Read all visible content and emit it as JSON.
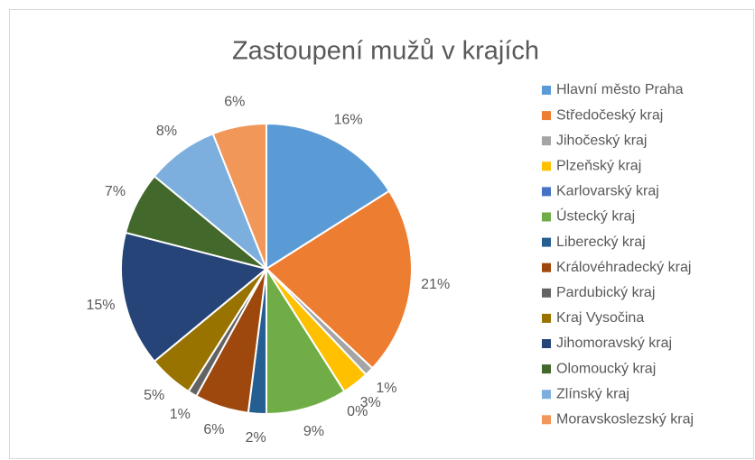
{
  "chart_data": {
    "type": "pie",
    "title": "Zastoupení mužů v krajích",
    "categories": [
      "Hlavní město Praha",
      "Středočeský kraj",
      "Jihočeský kraj",
      "Plzeňský kraj",
      "Karlovarský kraj",
      "Ústecký kraj",
      "Liberecký kraj",
      "Královéhradecký kraj",
      "Pardubický kraj",
      "Kraj Vysočina",
      "Jihomoravský kraj",
      "Olomoucký kraj",
      "Zlínský kraj",
      "Moravskoslezský kraj"
    ],
    "values": [
      16,
      21,
      1,
      3,
      0,
      9,
      2,
      6,
      1,
      5,
      15,
      7,
      8,
      6
    ],
    "value_labels": [
      "16%",
      "21%",
      "1%",
      "3%",
      "0%",
      "9%",
      "2%",
      "6%",
      "1%",
      "5%",
      "15%",
      "7%",
      "8%",
      "6%"
    ],
    "colors": [
      "#5b9bd5",
      "#ed7d31",
      "#a5a5a5",
      "#ffc000",
      "#4472c4",
      "#70ad47",
      "#255e91",
      "#9e480e",
      "#636363",
      "#997300",
      "#264478",
      "#43682b",
      "#7cafdd",
      "#f1975a"
    ],
    "legend": "right"
  }
}
